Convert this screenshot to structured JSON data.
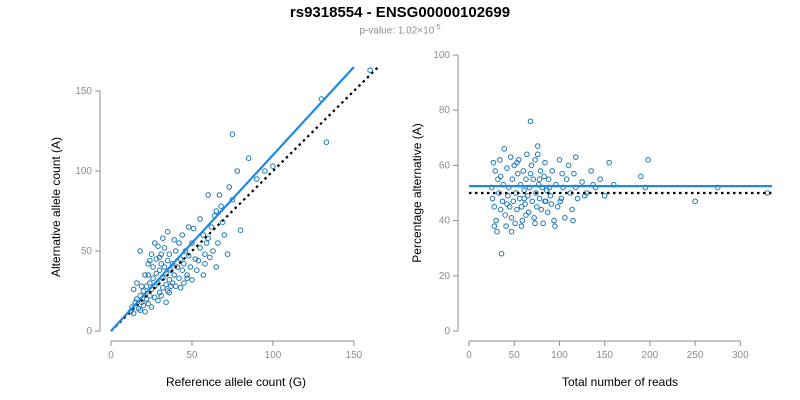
{
  "title": "rs9318554 - ENSG00000102699",
  "subtitle_prefix": "p-value: 1.02×10",
  "subtitle_exp": "-5",
  "colors": {
    "points": "#1f78b4",
    "fit": "#1e88e5",
    "reference": "#000000",
    "axis": "#8c8c8c"
  },
  "chart_data": [
    {
      "type": "scatter",
      "xlabel": "Reference allele count (G)",
      "ylabel": "Alternative allele count (A)",
      "xlim": [
        0,
        155
      ],
      "ylim": [
        0,
        155
      ],
      "xticks": [
        0,
        50,
        100,
        150
      ],
      "yticks": [
        0,
        50,
        100,
        150
      ],
      "fit_line": {
        "x": [
          0,
          150
        ],
        "y": [
          0,
          165
        ]
      },
      "reference_line": {
        "x": [
          0,
          165
        ],
        "y": [
          0,
          165
        ]
      },
      "points": [
        [
          12,
          12
        ],
        [
          13,
          15
        ],
        [
          14,
          11
        ],
        [
          15,
          18
        ],
        [
          16,
          20
        ],
        [
          17,
          14
        ],
        [
          18,
          13
        ],
        [
          18,
          22
        ],
        [
          19,
          18
        ],
        [
          20,
          16
        ],
        [
          20,
          25
        ],
        [
          21,
          12
        ],
        [
          22,
          20
        ],
        [
          22,
          28
        ],
        [
          23,
          17
        ],
        [
          23,
          35
        ],
        [
          24,
          22
        ],
        [
          24,
          30
        ],
        [
          25,
          15
        ],
        [
          25,
          26
        ],
        [
          26,
          33
        ],
        [
          26,
          40
        ],
        [
          27,
          21
        ],
        [
          27,
          28
        ],
        [
          28,
          36
        ],
        [
          28,
          45
        ],
        [
          29,
          19
        ],
        [
          29,
          30
        ],
        [
          30,
          24
        ],
        [
          30,
          38
        ],
        [
          31,
          42
        ],
        [
          31,
          48
        ],
        [
          32,
          27
        ],
        [
          32,
          33
        ],
        [
          33,
          40
        ],
        [
          33,
          52
        ],
        [
          34,
          29
        ],
        [
          34,
          36
        ],
        [
          35,
          44
        ],
        [
          35,
          25
        ],
        [
          36,
          32
        ],
        [
          36,
          48
        ],
        [
          37,
          38
        ],
        [
          38,
          30
        ],
        [
          38,
          42
        ],
        [
          39,
          35
        ],
        [
          40,
          50
        ],
        [
          40,
          28
        ],
        [
          41,
          40
        ],
        [
          42,
          33
        ],
        [
          42,
          55
        ],
        [
          43,
          45
        ],
        [
          44,
          38
        ],
        [
          44,
          60
        ],
        [
          45,
          30
        ],
        [
          45,
          42
        ],
        [
          46,
          50
        ],
        [
          47,
          35
        ],
        [
          48,
          47
        ],
        [
          48,
          65
        ],
        [
          49,
          40
        ],
        [
          50,
          32
        ],
        [
          50,
          55
        ],
        [
          52,
          45
        ],
        [
          53,
          38
        ],
        [
          55,
          52
        ],
        [
          55,
          70
        ],
        [
          57,
          60
        ],
        [
          58,
          42
        ],
        [
          58,
          48
        ],
        [
          60,
          58
        ],
        [
          60,
          85
        ],
        [
          62,
          65
        ],
        [
          63,
          50
        ],
        [
          65,
          40
        ],
        [
          65,
          75
        ],
        [
          66,
          55
        ],
        [
          68,
          78
        ],
        [
          70,
          60
        ],
        [
          72,
          48
        ],
        [
          73,
          90
        ],
        [
          75,
          82
        ],
        [
          75,
          123
        ],
        [
          78,
          100
        ],
        [
          80,
          63
        ],
        [
          85,
          108
        ],
        [
          90,
          95
        ],
        [
          95,
          100
        ],
        [
          100,
          103
        ],
        [
          130,
          145
        ],
        [
          133,
          118
        ],
        [
          160,
          163
        ],
        [
          18,
          50
        ],
        [
          24,
          44
        ],
        [
          29,
          53
        ],
        [
          31,
          22
        ],
        [
          34,
          18
        ],
        [
          36,
          24
        ],
        [
          39,
          57
        ],
        [
          43,
          27
        ],
        [
          47,
          33
        ],
        [
          51,
          64
        ],
        [
          54,
          44
        ],
        [
          57,
          35
        ],
        [
          59,
          55
        ],
        [
          61,
          46
        ],
        [
          64,
          72
        ],
        [
          67,
          85
        ],
        [
          69,
          68
        ],
        [
          14,
          26
        ],
        [
          16,
          30
        ],
        [
          19,
          28
        ],
        [
          21,
          35
        ],
        [
          23,
          42
        ],
        [
          25,
          48
        ],
        [
          27,
          55
        ],
        [
          30,
          46
        ],
        [
          32,
          58
        ],
        [
          35,
          62
        ],
        [
          37,
          28
        ]
      ]
    },
    {
      "type": "scatter",
      "xlabel": "Total number of reads",
      "ylabel": "Percentage alternative (A)",
      "xlim": [
        0,
        335
      ],
      "ylim": [
        0,
        100
      ],
      "xticks": [
        0,
        50,
        100,
        150,
        200,
        250,
        300
      ],
      "yticks": [
        0,
        20,
        40,
        60,
        80,
        100
      ],
      "fit_line": {
        "x": [
          0,
          335
        ],
        "y": [
          52.5,
          52.5
        ]
      },
      "reference_line": {
        "x": [
          0,
          335
        ],
        "y": [
          50,
          50
        ]
      },
      "points": [
        [
          25,
          52
        ],
        [
          26,
          48
        ],
        [
          27,
          61
        ],
        [
          28,
          45
        ],
        [
          29,
          58
        ],
        [
          30,
          40
        ],
        [
          31,
          36
        ],
        [
          32,
          55
        ],
        [
          33,
          50
        ],
        [
          34,
          62
        ],
        [
          35,
          44
        ],
        [
          36,
          28
        ],
        [
          37,
          47
        ],
        [
          38,
          53
        ],
        [
          39,
          66
        ],
        [
          40,
          42
        ],
        [
          41,
          38
        ],
        [
          42,
          59
        ],
        [
          43,
          49
        ],
        [
          44,
          52
        ],
        [
          45,
          45
        ],
        [
          46,
          63
        ],
        [
          47,
          41
        ],
        [
          48,
          55
        ],
        [
          49,
          47
        ],
        [
          50,
          60
        ],
        [
          51,
          39
        ],
        [
          52,
          50
        ],
        [
          53,
          44
        ],
        [
          54,
          57
        ],
        [
          55,
          62
        ],
        [
          56,
          48
        ],
        [
          57,
          53
        ],
        [
          58,
          45
        ],
        [
          59,
          40
        ],
        [
          60,
          58
        ],
        [
          61,
          51
        ],
        [
          62,
          46
        ],
        [
          63,
          55
        ],
        [
          64,
          64
        ],
        [
          65,
          49
        ],
        [
          66,
          43
        ],
        [
          67,
          52
        ],
        [
          68,
          76
        ],
        [
          69,
          60
        ],
        [
          70,
          47
        ],
        [
          71,
          55
        ],
        [
          72,
          41
        ],
        [
          73,
          62
        ],
        [
          74,
          50
        ],
        [
          75,
          45
        ],
        [
          76,
          67
        ],
        [
          77,
          53
        ],
        [
          78,
          48
        ],
        [
          79,
          58
        ],
        [
          80,
          44
        ],
        [
          81,
          52
        ],
        [
          82,
          39
        ],
        [
          83,
          56
        ],
        [
          84,
          61
        ],
        [
          85,
          47
        ],
        [
          86,
          51
        ],
        [
          87,
          43
        ],
        [
          88,
          55
        ],
        [
          90,
          49
        ],
        [
          92,
          58
        ],
        [
          94,
          40
        ],
        [
          96,
          53
        ],
        [
          98,
          45
        ],
        [
          100,
          62
        ],
        [
          102,
          48
        ],
        [
          104,
          52
        ],
        [
          106,
          41
        ],
        [
          108,
          55
        ],
        [
          110,
          60
        ],
        [
          112,
          50
        ],
        [
          114,
          44
        ],
        [
          116,
          57
        ],
        [
          118,
          52
        ],
        [
          120,
          48
        ],
        [
          125,
          54
        ],
        [
          130,
          50
        ],
        [
          135,
          58
        ],
        [
          140,
          52
        ],
        [
          145,
          55
        ],
        [
          150,
          49
        ],
        [
          155,
          61
        ],
        [
          160,
          53
        ],
        [
          190,
          56
        ],
        [
          195,
          52
        ],
        [
          198,
          62
        ],
        [
          250,
          47
        ],
        [
          275,
          52
        ],
        [
          330,
          50
        ],
        [
          28,
          38
        ],
        [
          35,
          56
        ],
        [
          42,
          46
        ],
        [
          47,
          36
        ],
        [
          53,
          61
        ],
        [
          58,
          38
        ],
        [
          63,
          42
        ],
        [
          68,
          57
        ],
        [
          73,
          39
        ],
        [
          78,
          55
        ],
        [
          84,
          47
        ],
        [
          89,
          52
        ],
        [
          95,
          38
        ],
        [
          101,
          47
        ],
        [
          115,
          40
        ],
        [
          128,
          49
        ],
        [
          137,
          53
        ],
        [
          118,
          63
        ],
        [
          103,
          57
        ],
        [
          91,
          46
        ],
        [
          76,
          64
        ],
        [
          61,
          48
        ]
      ]
    }
  ]
}
